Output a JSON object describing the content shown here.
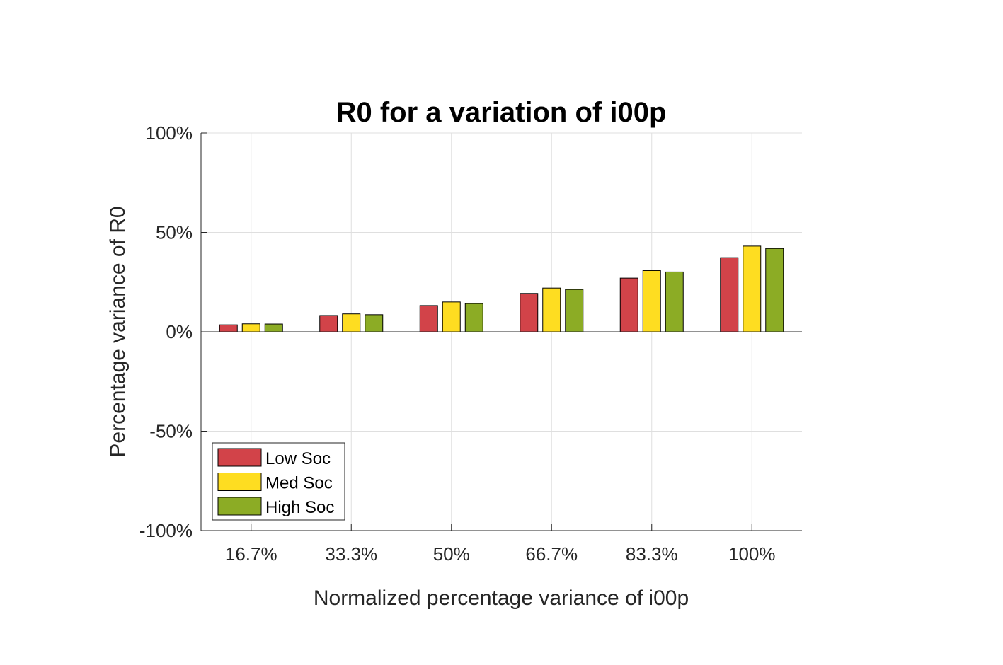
{
  "chart_data": {
    "type": "bar",
    "title": "R0 for a variation of i00p",
    "xlabel": "Normalized percentage variance of i00p",
    "ylabel": "Percentage variance of R0",
    "categories": [
      "16.7%",
      "33.3%",
      "50%",
      "66.7%",
      "83.3%",
      "100%"
    ],
    "series": [
      {
        "name": "Low Soc",
        "color": "#d24349",
        "values": [
          3.5,
          8.2,
          13.2,
          19.3,
          27.0,
          37.3
        ]
      },
      {
        "name": "Med Soc",
        "color": "#fedd21",
        "values": [
          4.0,
          9.0,
          15.0,
          22.0,
          30.8,
          43.1
        ]
      },
      {
        "name": "High Soc",
        "color": "#8cac25",
        "values": [
          3.9,
          8.6,
          14.2,
          21.3,
          30.1,
          41.9
        ]
      }
    ],
    "ylim": [
      -100,
      100
    ],
    "yticks": [
      -100,
      -50,
      0,
      50,
      100
    ],
    "ytick_labels": [
      "-100%",
      "-50%",
      "0%",
      "50%",
      "100%"
    ],
    "grid": true,
    "legend_position": "bottom-left"
  }
}
